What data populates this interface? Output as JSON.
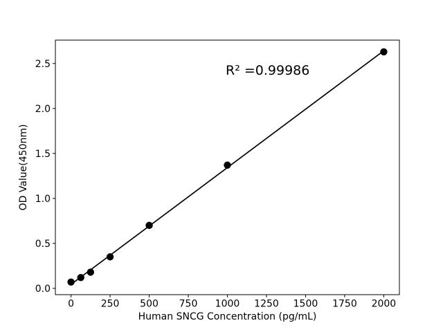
{
  "figure": {
    "background": "#ffffff",
    "foreground": "#000000"
  },
  "chart_data": {
    "type": "scatter",
    "title": "",
    "xlabel": "Human SNCG Concentration (pg/mL)",
    "ylabel": "OD Value(450nm)",
    "x": [
      0,
      62.5,
      125,
      250,
      500,
      1000,
      2000
    ],
    "y": [
      0.07,
      0.12,
      0.18,
      0.35,
      0.7,
      1.37,
      2.63
    ],
    "fit_line": true,
    "r_squared": 0.99986,
    "xlim": [
      -100,
      2100
    ],
    "ylim": [
      -0.07,
      2.76
    ],
    "xticks": {
      "values": [
        0,
        250,
        500,
        750,
        1000,
        1250,
        1500,
        1750,
        2000
      ],
      "labels": [
        "0",
        "250",
        "500",
        "750",
        "1000",
        "1250",
        "1500",
        "1750",
        "2000"
      ]
    },
    "yticks": {
      "values": [
        0.0,
        0.5,
        1.0,
        1.5,
        2.0,
        2.5
      ],
      "labels": [
        "0.0",
        "0.5",
        "1.0",
        "1.5",
        "2.0",
        "2.5"
      ]
    },
    "grid": false,
    "legend": null,
    "marker_color": "#000000",
    "line_color": "#000000",
    "annotations": [
      {
        "text": "R² =0.99986",
        "fx": 0.495,
        "fy": 0.864
      }
    ]
  }
}
